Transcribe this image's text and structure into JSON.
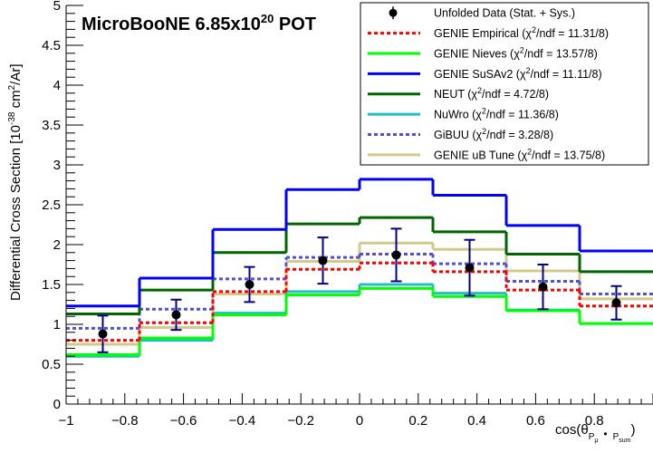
{
  "chart_data": {
    "type": "line",
    "title": "MicroBooNE 6.85x10",
    "title_exponent": "20",
    "title_suffix": " POT",
    "ylabel": "Differential Cross Section [10",
    "ylabel_exponent": "-38",
    "ylabel_suffix": " cm",
    "ylabel_exponent2": "2",
    "ylabel_suffix2": "/Ar]",
    "xlabel_main": "cos(θ",
    "xlabel_sub1": "P",
    "xlabel_subsub1": "μ",
    "xlabel_dot": "•",
    "xlabel_sub2": "P",
    "xlabel_subsub2": "sum",
    "xlabel_close": ")",
    "xlim": [
      -1,
      1
    ],
    "ylim": [
      0,
      5
    ],
    "x_ticks": [
      -1,
      -0.8,
      -0.6,
      -0.4,
      -0.2,
      0,
      0.2,
      0.4,
      0.6,
      0.8
    ],
    "x_tick_labels": [
      "−1",
      "−0.8",
      "−0.6",
      "−0.4",
      "−0.2",
      "0",
      "0.2",
      "0.4",
      "0.6",
      "0.8"
    ],
    "y_ticks": [
      0,
      0.5,
      1,
      1.5,
      2,
      2.5,
      3,
      3.5,
      4,
      4.5,
      5
    ],
    "y_tick_labels": [
      "0",
      "0.5",
      "1",
      "1.5",
      "2",
      "2.5",
      "3",
      "3.5",
      "4",
      "4.5",
      "5"
    ],
    "bin_edges": [
      -1,
      -0.75,
      -0.5,
      -0.25,
      0,
      0.25,
      0.5,
      0.75,
      1
    ],
    "data": {
      "name": "Unfolded Data (Stat. + Sys.)",
      "x": [
        -0.875,
        -0.625,
        -0.375,
        -0.125,
        0.125,
        0.375,
        0.625,
        0.875
      ],
      "y": [
        0.88,
        1.12,
        1.5,
        1.8,
        1.87,
        1.71,
        1.47,
        1.27
      ],
      "err": [
        0.23,
        0.19,
        0.22,
        0.29,
        0.33,
        0.35,
        0.28,
        0.21
      ],
      "color": "#000000",
      "errcolor": "#00008b"
    },
    "series": [
      {
        "name": "GENIE Empirical (χ",
        "chi": "/ndf = 11.31/8)",
        "values": [
          0.8,
          1.02,
          1.41,
          1.69,
          1.77,
          1.66,
          1.43,
          1.23
        ],
        "color": "#ff0000",
        "dash": "4,3"
      },
      {
        "name": "GENIE Nieves (χ",
        "chi": "/ndf = 13.57/8)",
        "values": [
          0.62,
          0.83,
          1.12,
          1.37,
          1.45,
          1.35,
          1.17,
          1.01
        ],
        "color": "#00ff00",
        "dash": ""
      },
      {
        "name": "GENIE SuSAv2 (χ",
        "chi": "/ndf = 11.11/8)",
        "values": [
          1.23,
          1.58,
          2.19,
          2.69,
          2.82,
          2.62,
          2.24,
          1.92
        ],
        "color": "#0000ff",
        "dash": ""
      },
      {
        "name": "NEUT (χ",
        "chi": "/ndf = 4.72/8)",
        "values": [
          1.13,
          1.43,
          1.9,
          2.26,
          2.34,
          2.16,
          1.88,
          1.66
        ],
        "color": "#006400",
        "dash": ""
      },
      {
        "name": "NuWro (χ",
        "chi": "/ndf = 11.36/8)",
        "values": [
          0.6,
          0.8,
          1.14,
          1.41,
          1.5,
          1.39,
          1.18,
          1.01
        ],
        "color": "#20c0c0",
        "dash": ""
      },
      {
        "name": "GiBUU (χ",
        "chi": "/ndf = 3.28/8)",
        "values": [
          0.95,
          1.19,
          1.57,
          1.84,
          1.88,
          1.76,
          1.54,
          1.38
        ],
        "color": "#5050d8",
        "dash": "4,3"
      },
      {
        "name": "GENIE uB Tune (χ",
        "chi": "/ndf = 13.75/8)",
        "values": [
          0.75,
          0.96,
          1.38,
          1.79,
          2.02,
          1.94,
          1.67,
          1.32
        ],
        "color": "#d4c88a",
        "dash": ""
      }
    ],
    "legend_position": "top-right",
    "grid": false
  }
}
